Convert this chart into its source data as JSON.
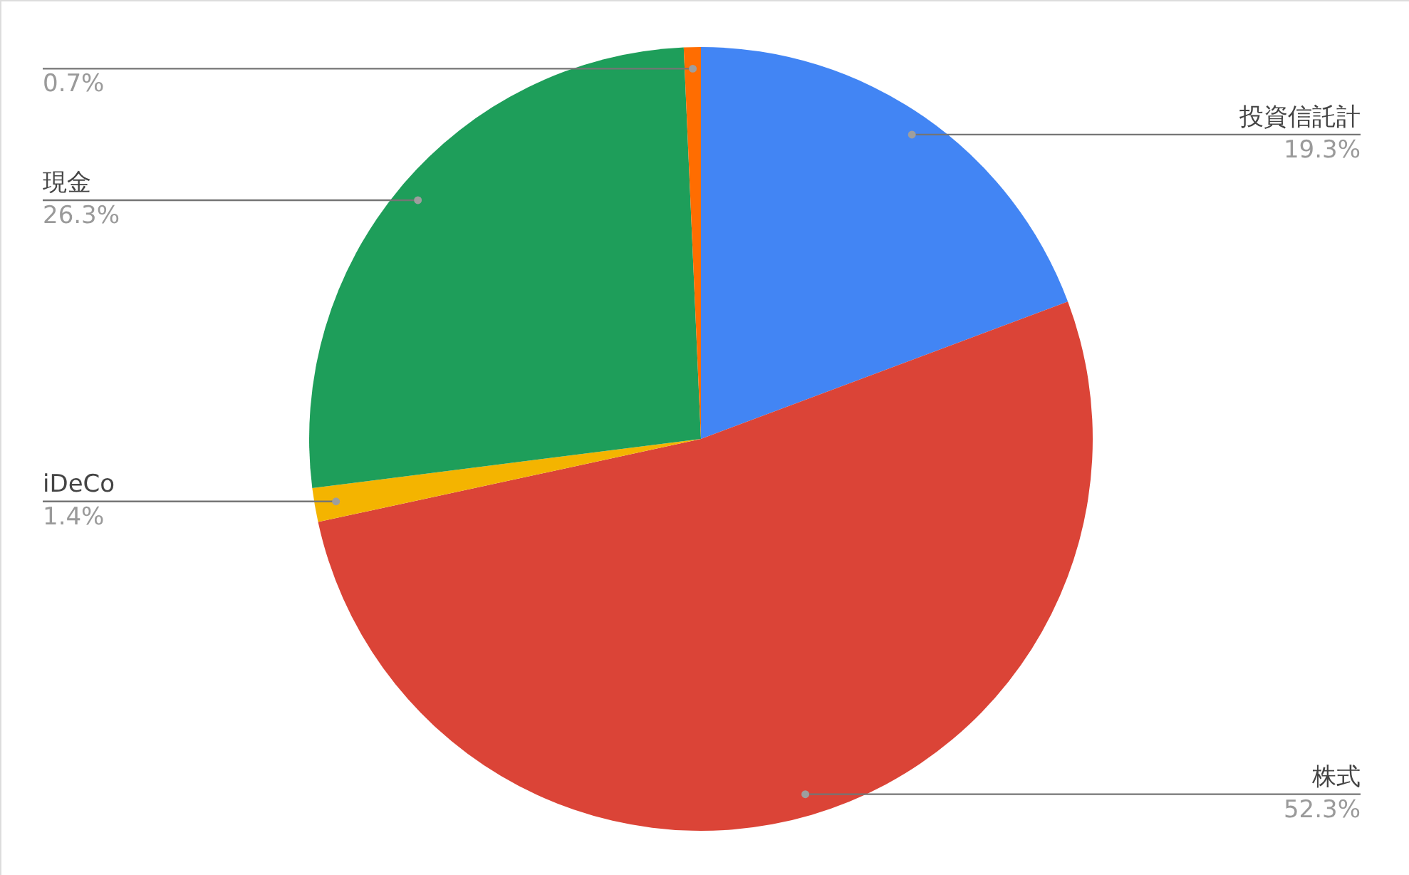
{
  "chart_data": {
    "type": "pie",
    "categories": [
      "投資信託計",
      "株式",
      "iDeCo",
      "現金",
      null
    ],
    "values": [
      19.3,
      52.3,
      1.4,
      26.3,
      0.7
    ],
    "colors": [
      "#4285f4",
      "#db4437",
      "#f4b400",
      "#1e9e5a",
      "#ff6d01"
    ],
    "value_labels": [
      "19.3%",
      "52.3%",
      "1.4%",
      "26.3%",
      "0.7%"
    ]
  }
}
